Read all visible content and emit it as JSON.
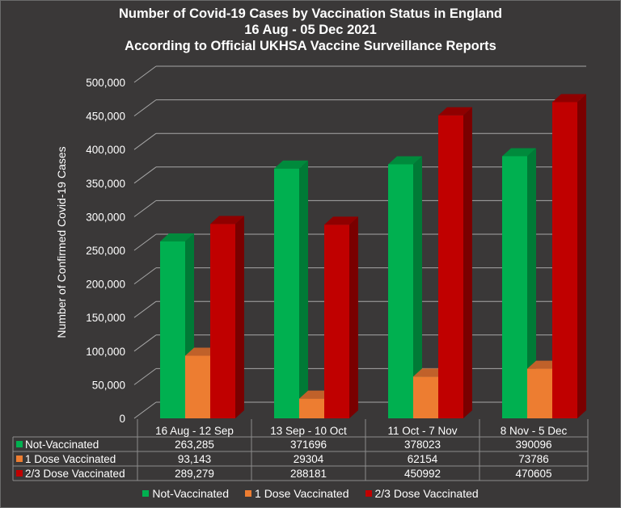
{
  "chart_data": {
    "type": "bar",
    "title": "Number of Covid-19 Cases by Vaccination Status in England",
    "subtitle": "16 Aug - 05 Dec 2021",
    "subtitle2": "According to Official UKHSA Vaccine Surveillance Reports",
    "xlabel": "",
    "ylabel": "Number of Confirmed Covid-19 Cases",
    "ylim": [
      0,
      500000
    ],
    "yticks": [
      0,
      50000,
      100000,
      150000,
      200000,
      250000,
      300000,
      350000,
      400000,
      450000,
      500000
    ],
    "ytick_labels": [
      "0",
      "50,000",
      "100,000",
      "150,000",
      "200,000",
      "250,000",
      "300,000",
      "350,000",
      "400,000",
      "450,000",
      "500,000"
    ],
    "grid": true,
    "legend_position": "bottom",
    "categories": [
      "16 Aug - 12 Sep",
      "13 Sep - 10 Oct",
      "11 Oct - 7 Nov",
      "8 Nov - 5 Dec"
    ],
    "series": [
      {
        "name": "Not-Vaccinated",
        "color": "#00b050",
        "side": "#007a36",
        "top": "#008a3c",
        "values": [
          263285,
          371696,
          378023,
          390096
        ],
        "labels": [
          "263,285",
          "371696",
          "378023",
          "390096"
        ]
      },
      {
        "name": "1 Dose Vaccinated",
        "color": "#ed7d31",
        "side": "#b35a1f",
        "top": "#c0612a",
        "values": [
          93143,
          29304,
          62154,
          73786
        ],
        "labels": [
          "93,143",
          "29304",
          "62154",
          "73786"
        ]
      },
      {
        "name": "2/3 Dose Vaccinated",
        "color": "#c00000",
        "side": "#7a0000",
        "top": "#8f0000",
        "values": [
          289279,
          288181,
          450992,
          470605
        ],
        "labels": [
          "289,279",
          "288181",
          "450992",
          "470605"
        ]
      }
    ]
  }
}
